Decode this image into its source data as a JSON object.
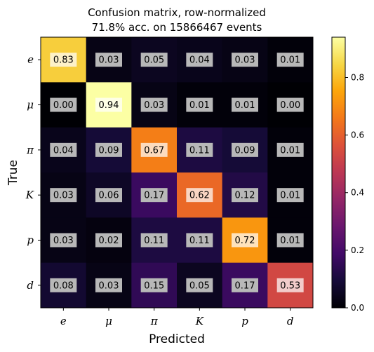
{
  "chart_data": {
    "type": "heatmap",
    "title_line1": "Confusion matrix, row-normalized",
    "title_line2": "71.8% acc. on 15866467 events",
    "xlabel": "Predicted",
    "ylabel": "True",
    "x_categories": [
      "e",
      "μ",
      "π",
      "K",
      "p",
      "d"
    ],
    "y_categories": [
      "e",
      "μ",
      "π",
      "K",
      "p",
      "d"
    ],
    "values": [
      [
        0.83,
        0.03,
        0.05,
        0.04,
        0.03,
        0.01
      ],
      [
        0.0,
        0.94,
        0.03,
        0.01,
        0.01,
        0.0
      ],
      [
        0.04,
        0.09,
        0.67,
        0.11,
        0.09,
        0.01
      ],
      [
        0.03,
        0.06,
        0.17,
        0.62,
        0.12,
        0.01
      ],
      [
        0.03,
        0.02,
        0.11,
        0.11,
        0.72,
        0.01
      ],
      [
        0.08,
        0.03,
        0.15,
        0.05,
        0.17,
        0.53
      ]
    ],
    "colormap": "inferno",
    "vmin": 0.0,
    "vmax": 0.94,
    "colorbar_ticks": [
      "0.0",
      "0.2",
      "0.4",
      "0.6",
      "0.8"
    ],
    "colorbar_tick_values": [
      0.0,
      0.2,
      0.4,
      0.6,
      0.8
    ],
    "label_box_color": "#b8b8b8",
    "label_box_threshold": 0.5
  }
}
